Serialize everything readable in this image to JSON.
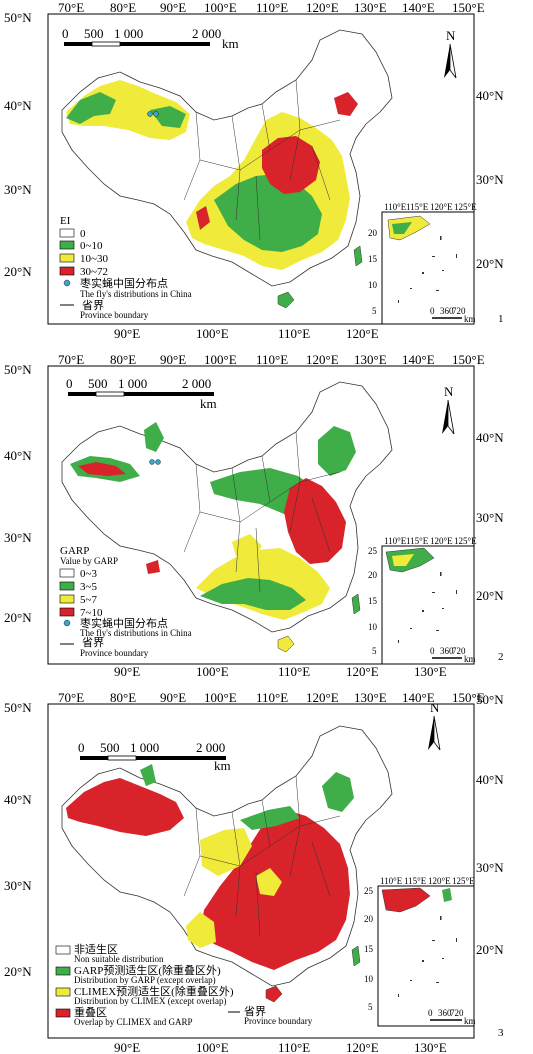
{
  "panels": [
    {
      "id": "1",
      "number": "1",
      "top_lon": [
        "70°E",
        "80°E",
        "90°E",
        "100°E",
        "110°E",
        "120°E",
        "130°E",
        "140°E",
        "150°E"
      ],
      "bottom_lon": [
        "90°E",
        "100°E",
        "110°E",
        "120°E"
      ],
      "left_lat": [
        "50°N",
        "40°N",
        "30°N",
        "20°N"
      ],
      "right_lat": [
        "40°N",
        "30°N",
        "20°N"
      ],
      "scale": {
        "labels": [
          "0",
          "500",
          "1 000",
          "2 000"
        ],
        "unit": "km"
      },
      "north": "N",
      "inset_lon": [
        "110°E",
        "115°E",
        "120°E",
        "125°E"
      ],
      "inset_lat": [
        "20",
        "15",
        "10",
        "5"
      ],
      "inset_scale": {
        "labels": [
          "0",
          "360",
          "720"
        ],
        "unit": "km"
      },
      "legend": {
        "title": "EI",
        "items": [
          {
            "label": "0",
            "color": "#ffffff"
          },
          {
            "label": "0~10",
            "color": "#3fae49"
          },
          {
            "label": "10~30",
            "color": "#f0ea3a"
          },
          {
            "label": "30~72",
            "color": "#d8232a"
          }
        ],
        "point_cn": "枣实蝇中国分布点",
        "point_en": "The fly's distributions in China",
        "boundary_cn": "省界",
        "boundary_en": "Province boundary"
      }
    },
    {
      "id": "2",
      "number": "2",
      "top_lon": [
        "70°E",
        "80°E",
        "90°E",
        "100°E",
        "110°E",
        "120°E",
        "130°E",
        "140°E",
        "150°E"
      ],
      "bottom_lon": [
        "90°E",
        "100°E",
        "110°E",
        "120°E",
        "130°E"
      ],
      "left_lat": [
        "50°N",
        "40°N",
        "30°N",
        "20°N"
      ],
      "right_lat": [
        "40°N",
        "30°N",
        "20°N"
      ],
      "scale": {
        "labels": [
          "0",
          "500",
          "1 000",
          "2 000"
        ],
        "unit": "km"
      },
      "north": "N",
      "inset_lon": [
        "110°E",
        "115°E",
        "120°E",
        "125°E"
      ],
      "inset_lat": [
        "25",
        "20",
        "15",
        "10",
        "5"
      ],
      "inset_scale": {
        "labels": [
          "0",
          "360",
          "720"
        ],
        "unit": "km"
      },
      "legend": {
        "title": "GARP",
        "subtitle": "Value by GARP",
        "items": [
          {
            "label": "0~3",
            "color": "#ffffff"
          },
          {
            "label": "3~5",
            "color": "#3fae49"
          },
          {
            "label": "5~7",
            "color": "#f0ea3a"
          },
          {
            "label": "7~10",
            "color": "#d8232a"
          }
        ],
        "point_cn": "枣实蝇中国分布点",
        "point_en": "The fly's distributions in China",
        "boundary_cn": "省界",
        "boundary_en": "Province boundary"
      }
    },
    {
      "id": "3",
      "number": "3",
      "top_lon": [
        "70°E",
        "80°E",
        "90°E",
        "100°E",
        "110°E",
        "120°E",
        "130°E",
        "140°E",
        "150°E"
      ],
      "bottom_lon": [
        "90°E",
        "100°E",
        "110°E",
        "120°E",
        "130°E"
      ],
      "left_lat": [
        "50°N",
        "40°N",
        "30°N",
        "20°N"
      ],
      "right_lat": [
        "50°N",
        "40°N",
        "30°N",
        "20°N"
      ],
      "scale": {
        "labels": [
          "0",
          "500",
          "1 000",
          "2 000"
        ],
        "unit": "km"
      },
      "north": "N",
      "inset_lon": [
        "110°E",
        "115°E",
        "120°E",
        "125°E"
      ],
      "inset_lat": [
        "25",
        "20",
        "15",
        "10",
        "5"
      ],
      "inset_scale": {
        "labels": [
          "0",
          "360",
          "720"
        ],
        "unit": "km"
      },
      "legend": {
        "items": [
          {
            "cn": "非适生区",
            "en": "Non suitable distribution",
            "color": "#ffffff"
          },
          {
            "cn": "GARP预测适生区(除重叠区外)",
            "en": "Distribution by GARP (except overlap)",
            "color": "#3fae49"
          },
          {
            "cn": "CLIMEX预测适生区(除重叠区外)",
            "en": "Distribution by CLIMEX (except overlap)",
            "color": "#f0ea3a"
          },
          {
            "cn": "重叠区",
            "en": "Overlap by CLIMEX and GARP",
            "color": "#d8232a"
          }
        ],
        "boundary_cn": "省界",
        "boundary_en": "Province boundary"
      }
    }
  ]
}
